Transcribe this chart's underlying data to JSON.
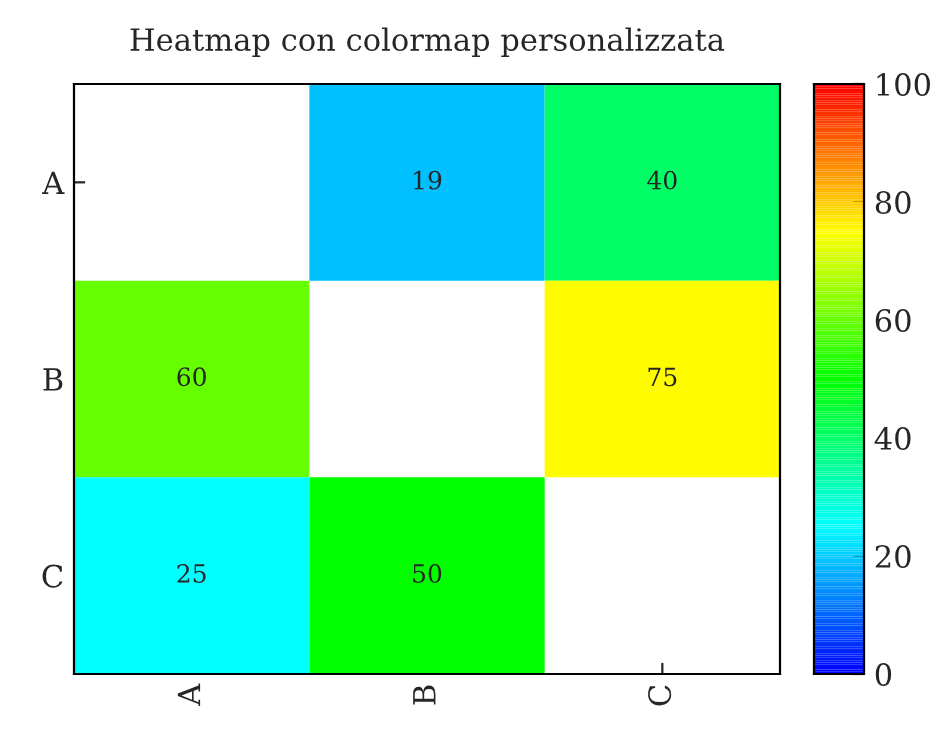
{
  "chart_data": {
    "type": "heatmap",
    "title": "Heatmap con colormap personalizzata",
    "categories": [
      "A",
      "B",
      "C"
    ],
    "y_categories": [
      "A",
      "B",
      "C"
    ],
    "cells": [
      [
        null,
        19,
        40
      ],
      [
        60,
        null,
        75
      ],
      [
        25,
        50,
        null
      ]
    ],
    "clim": [
      0,
      100
    ],
    "cticks": [
      0,
      20,
      40,
      60,
      80,
      100
    ],
    "data_labels": true
  }
}
